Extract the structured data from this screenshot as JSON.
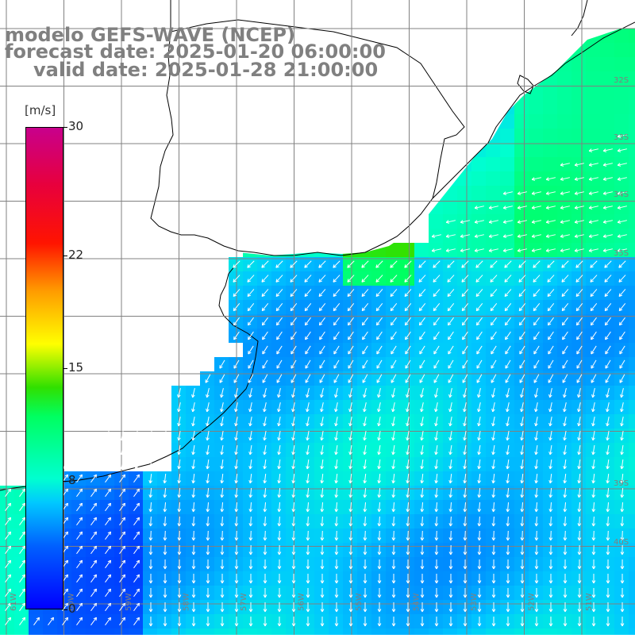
{
  "title": {
    "line1": "modelo GEFS-WAVE (NCEP)",
    "line2": "forecast date: 2025-01-20 06:00:00",
    "line3": "valid date: 2025-01-28 21:00:00"
  },
  "colorbar": {
    "unit": "[m/s]",
    "ticks": [
      "30",
      "22",
      "15",
      "8",
      "0"
    ],
    "tick_values": [
      30,
      22,
      15,
      8,
      0
    ],
    "min": 0,
    "max": 30
  },
  "map": {
    "lat_labels": [
      "32S",
      "33S",
      "34S",
      "35S",
      "39S",
      "40S"
    ],
    "lon_labels": [
      "61W",
      "60W",
      "59W",
      "58W",
      "57W",
      "56W",
      "55W",
      "54W",
      "53W",
      "52W",
      "51W"
    ],
    "grid": true,
    "colors": {
      "land": "#ffffff",
      "coast": "#000000",
      "grid": "#808080",
      "arrows": "#ffffff"
    }
  }
}
